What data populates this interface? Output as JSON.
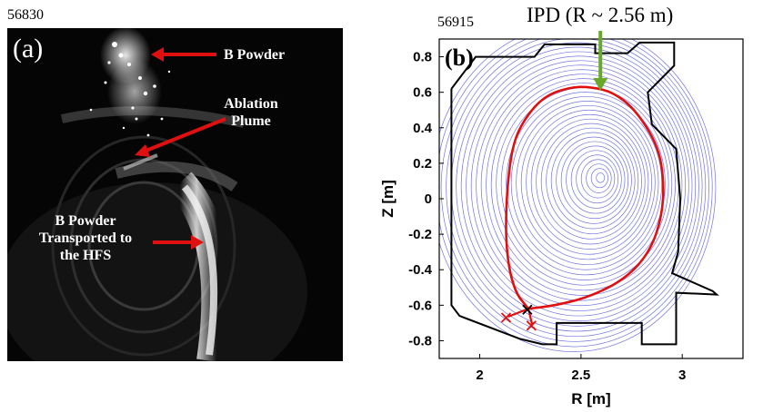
{
  "panel_a": {
    "shot_number": "56830",
    "panel_label": "(a)",
    "annotations": {
      "b_powder": "B Powder",
      "ablation_line1": "Ablation",
      "ablation_line2": "Plume",
      "transport_line1": "B Powder",
      "transport_line2": "Transported to",
      "transport_line3": "the HFS"
    },
    "arrow_color": "#e01010"
  },
  "panel_b": {
    "shot_number": "56915",
    "panel_label": "(b)",
    "ipd_label": "IPD (R ~ 2.56 m)",
    "ipd_arrow_color": "#6aa82a",
    "separatrix_color": "#e01010",
    "flux_color": "#5a5ad8",
    "wall_color": "#000000"
  },
  "chart_data": {
    "type": "line",
    "xlabel": "R [m]",
    "ylabel": "Z [m]",
    "xlim": [
      1.8,
      3.3
    ],
    "ylim": [
      -0.9,
      0.9
    ],
    "x_ticks": [
      "2",
      "2.5",
      "3"
    ],
    "y_ticks": [
      "0.8",
      "0.6",
      "0.4",
      "0.2",
      "0",
      "-0.2",
      "-0.4",
      "-0.6",
      "-0.8"
    ],
    "x_tick_values": [
      2,
      2.5,
      3
    ],
    "y_tick_values": [
      0.8,
      0.6,
      0.4,
      0.2,
      0,
      -0.2,
      -0.4,
      -0.6,
      -0.8
    ],
    "magnetic_axis": [
      2.6,
      0.12
    ],
    "ipd_R": 2.56,
    "wall": [
      [
        1.86,
        0.62
      ],
      [
        1.98,
        0.8
      ],
      [
        2.27,
        0.8
      ],
      [
        2.32,
        0.87
      ],
      [
        2.57,
        0.87
      ],
      [
        2.57,
        0.82
      ],
      [
        2.73,
        0.82
      ],
      [
        2.79,
        0.88
      ],
      [
        2.96,
        0.88
      ],
      [
        2.96,
        0.75
      ],
      [
        2.83,
        0.6
      ],
      [
        2.85,
        0.42
      ],
      [
        2.97,
        0.28
      ],
      [
        2.99,
        0.0
      ],
      [
        2.98,
        -0.3
      ],
      [
        2.95,
        -0.42
      ],
      [
        3.15,
        -0.52
      ],
      [
        3.17,
        -0.54
      ],
      [
        2.97,
        -0.53
      ],
      [
        2.97,
        -0.82
      ],
      [
        2.8,
        -0.82
      ],
      [
        2.8,
        -0.7
      ],
      [
        2.38,
        -0.7
      ],
      [
        2.38,
        -0.82
      ],
      [
        2.31,
        -0.82
      ],
      [
        2.2,
        -0.79
      ],
      [
        1.9,
        -0.66
      ],
      [
        1.86,
        -0.6
      ],
      [
        1.86,
        0.62
      ]
    ],
    "separatrix": [
      [
        2.24,
        -0.62
      ],
      [
        2.17,
        -0.52
      ],
      [
        2.13,
        -0.3
      ],
      [
        2.13,
        0.0
      ],
      [
        2.16,
        0.3
      ],
      [
        2.22,
        0.45
      ],
      [
        2.32,
        0.58
      ],
      [
        2.45,
        0.63
      ],
      [
        2.55,
        0.63
      ],
      [
        2.66,
        0.6
      ],
      [
        2.77,
        0.5
      ],
      [
        2.88,
        0.3
      ],
      [
        2.91,
        0.1
      ],
      [
        2.9,
        -0.1
      ],
      [
        2.84,
        -0.3
      ],
      [
        2.72,
        -0.45
      ],
      [
        2.55,
        -0.55
      ],
      [
        2.38,
        -0.6
      ],
      [
        2.24,
        -0.62
      ]
    ],
    "separatrix_legs": [
      [
        [
          2.24,
          -0.62
        ],
        [
          2.14,
          -0.665
        ]
      ],
      [
        [
          2.24,
          -0.62
        ],
        [
          2.26,
          -0.715
        ]
      ]
    ],
    "x_points": {
      "black": [
        [
          2.235,
          -0.625
        ]
      ],
      "red": [
        [
          2.13,
          -0.67
        ],
        [
          2.255,
          -0.715
        ]
      ]
    }
  }
}
